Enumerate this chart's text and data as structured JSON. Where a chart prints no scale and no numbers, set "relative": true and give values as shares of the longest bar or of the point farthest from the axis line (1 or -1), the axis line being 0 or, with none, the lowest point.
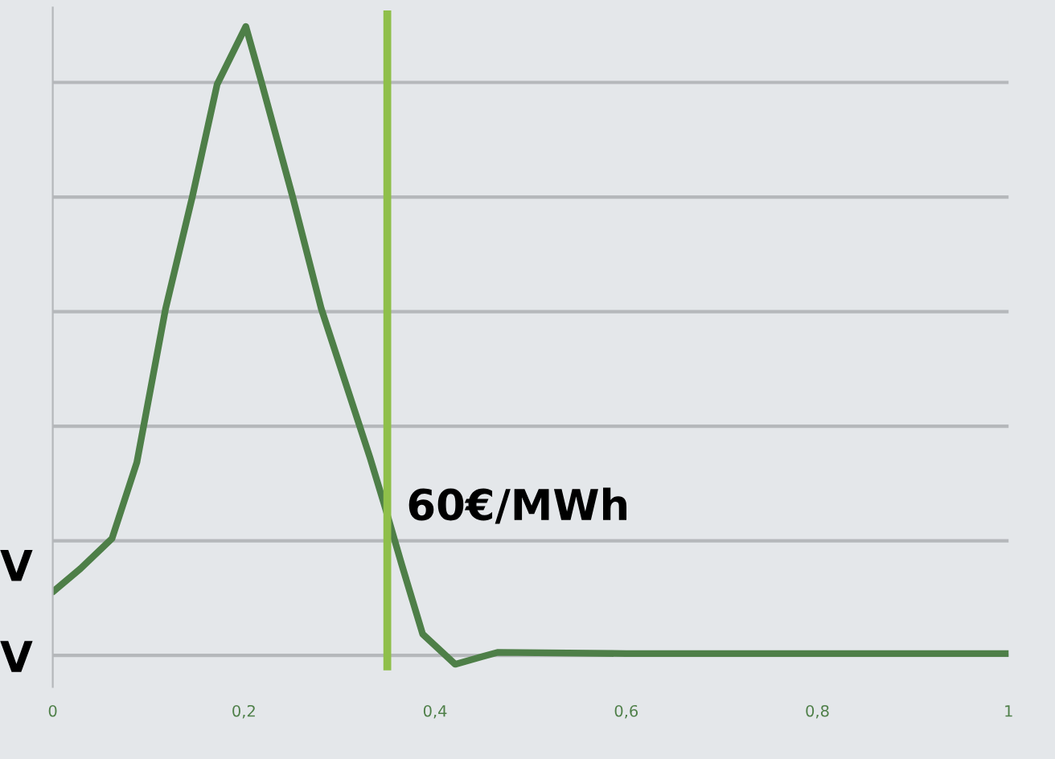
{
  "chart_data": {
    "type": "line",
    "relative": true,
    "x": [
      0,
      0.029,
      0.062,
      0.088,
      0.118,
      0.146,
      0.172,
      0.202,
      0.219,
      0.251,
      0.281,
      0.332,
      0.348,
      0.365,
      0.387,
      0.421,
      0.449,
      0.466,
      0.6,
      0.8,
      1.0
    ],
    "series": [
      {
        "color": "#4e7f48",
        "values": [
          0.101,
          0.138,
          0.186,
          0.307,
          0.551,
          0.729,
          0.908,
          1.0,
          0.908,
          0.729,
          0.551,
          0.314,
          0.234,
          0.145,
          0.034,
          -0.014,
          -0.002,
          0.005,
          0.003,
          0.003,
          0.003
        ]
      }
    ],
    "xlim": [
      0,
      1
    ],
    "xticks": [
      {
        "value": 0,
        "label": "0"
      },
      {
        "value": 0.2,
        "label": "0,2"
      },
      {
        "value": 0.4,
        "label": "0,4"
      },
      {
        "value": 0.6,
        "label": "0,6"
      },
      {
        "value": 0.8,
        "label": "0,8"
      },
      {
        "value": 1,
        "label": "1"
      }
    ],
    "ref_lines": [
      {
        "axis": "x",
        "value": 0.35,
        "label": "60€/MWh",
        "color": "#8fbf4a"
      }
    ],
    "annotations": [
      "V",
      "V"
    ],
    "grid": "y",
    "marker": "none",
    "line_style": "solid"
  }
}
